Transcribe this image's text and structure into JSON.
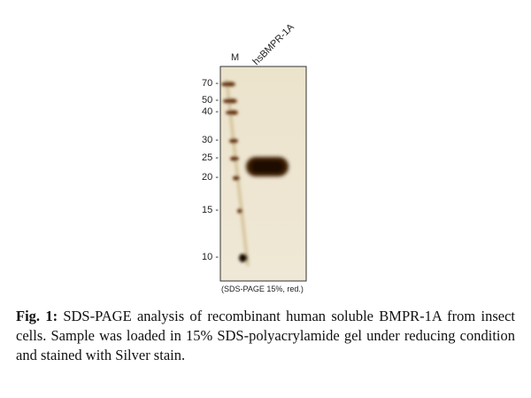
{
  "gel": {
    "lanes": [
      "M",
      "hsBMPR-1A"
    ],
    "markers": [
      "70 -",
      "50 -",
      "40 -",
      "30 -",
      "25 -",
      "20 -",
      "15 -",
      "10 -"
    ],
    "note": "(SDS-PAGE 15%, red.)"
  },
  "caption": {
    "label": "Fig. 1:",
    "text": "SDS-PAGE analysis of recombinant human soluble BMPR-1A from insect cells. Sample was loaded in 15% SDS-polyacrylamide gel under reducing  condition and stained with Silver stain."
  }
}
